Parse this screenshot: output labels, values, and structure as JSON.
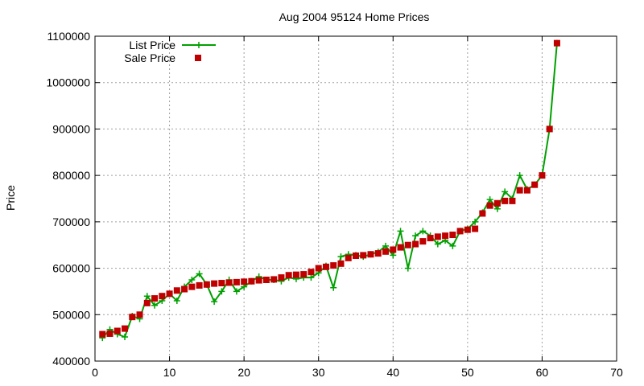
{
  "chart_data": {
    "type": "line",
    "title": "Aug 2004 95124 Home Prices",
    "xlabel": "",
    "ylabel": "Price",
    "xlim": [
      0,
      70
    ],
    "ylim": [
      400000,
      1100000
    ],
    "xticks": [
      0,
      10,
      20,
      30,
      40,
      50,
      60,
      70
    ],
    "yticks": [
      400000,
      500000,
      600000,
      700000,
      800000,
      900000,
      1000000,
      1100000
    ],
    "grid": true,
    "legend_position": "top-left",
    "series": [
      {
        "name": "List Price",
        "style": "line-plus",
        "color": "#00a000",
        "x": [
          1,
          2,
          3,
          4,
          5,
          6,
          7,
          8,
          9,
          10,
          11,
          12,
          13,
          14,
          15,
          16,
          17,
          18,
          19,
          20,
          21,
          22,
          23,
          24,
          25,
          26,
          27,
          28,
          29,
          30,
          31,
          32,
          33,
          34,
          35,
          36,
          37,
          38,
          39,
          40,
          41,
          42,
          43,
          44,
          45,
          46,
          47,
          48,
          49,
          50,
          51,
          52,
          53,
          54,
          55,
          56,
          57,
          58,
          59,
          60,
          61,
          62
        ],
        "values": [
          450000,
          468000,
          458000,
          452000,
          497000,
          491000,
          540000,
          520000,
          530000,
          545000,
          530000,
          560000,
          575000,
          588000,
          565000,
          528000,
          550000,
          575000,
          550000,
          560000,
          572000,
          582000,
          575000,
          575000,
          572000,
          580000,
          577000,
          580000,
          580000,
          590000,
          605000,
          558000,
          625000,
          630000,
          628000,
          625000,
          630000,
          635000,
          648000,
          628000,
          680000,
          600000,
          670000,
          680000,
          670000,
          652000,
          660000,
          648000,
          680000,
          685000,
          700000,
          720000,
          748000,
          728000,
          765000,
          750000,
          800000,
          770000,
          780000,
          800000,
          900000,
          1085000
        ]
      },
      {
        "name": "Sale Price",
        "style": "points-square",
        "color": "#c00000",
        "x": [
          1,
          2,
          3,
          4,
          5,
          6,
          7,
          8,
          9,
          10,
          11,
          12,
          13,
          14,
          15,
          16,
          17,
          18,
          19,
          20,
          21,
          22,
          23,
          24,
          25,
          26,
          27,
          28,
          29,
          30,
          31,
          32,
          33,
          34,
          35,
          36,
          37,
          38,
          39,
          40,
          41,
          42,
          43,
          44,
          45,
          46,
          47,
          48,
          49,
          50,
          51,
          52,
          53,
          54,
          55,
          56,
          57,
          58,
          59,
          60,
          61,
          62
        ],
        "values": [
          458000,
          459000,
          465000,
          470000,
          495000,
          500000,
          525000,
          535000,
          540000,
          545000,
          552000,
          555000,
          560000,
          563000,
          565000,
          567000,
          568000,
          569000,
          570000,
          571000,
          572000,
          574000,
          575000,
          576000,
          580000,
          585000,
          586000,
          587000,
          592000,
          600000,
          603000,
          606000,
          610000,
          622000,
          627000,
          628000,
          630000,
          632000,
          636000,
          640000,
          645000,
          650000,
          652000,
          658000,
          665000,
          668000,
          670000,
          672000,
          680000,
          683000,
          685000,
          718000,
          735000,
          740000,
          745000,
          745000,
          768000,
          768000,
          780000,
          800000,
          900000,
          1085000
        ]
      }
    ]
  }
}
